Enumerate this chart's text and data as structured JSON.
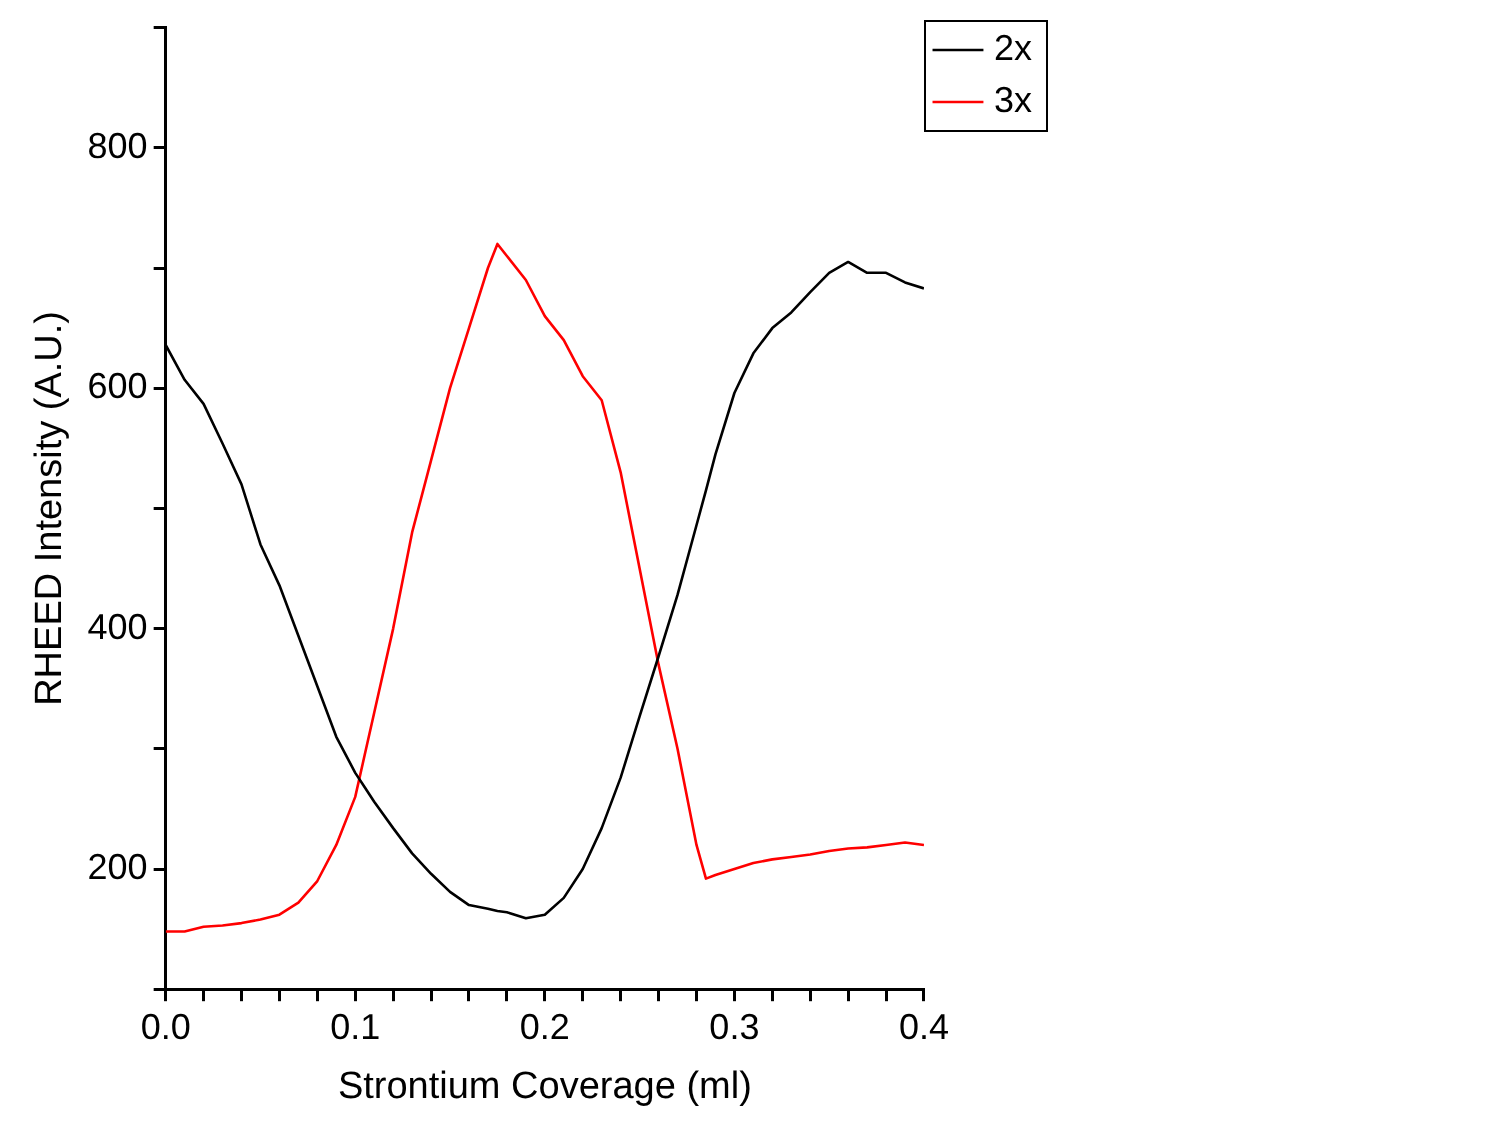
{
  "chart_data": {
    "type": "line",
    "xlabel": "Strontium Coverage (ml)",
    "ylabel": "RHEED Intensity (A.U.)",
    "x": [
      0,
      0.01,
      0.02,
      0.03,
      0.04,
      0.05,
      0.06,
      0.07,
      0.08,
      0.09,
      0.1,
      0.105,
      0.11,
      0.12,
      0.13,
      0.14,
      0.15,
      0.16,
      0.17,
      0.175,
      0.18,
      0.19,
      0.2,
      0.21,
      0.22,
      0.23,
      0.24,
      0.25,
      0.26,
      0.27,
      0.28,
      0.285,
      0.29,
      0.3,
      0.31,
      0.32,
      0.33,
      0.34,
      0.35,
      0.36,
      0.37,
      0.38,
      0.39,
      0.4
    ],
    "series": [
      {
        "name": "2x",
        "color": "#000000",
        "values": [
          636,
          607,
          587,
          554,
          520,
          470,
          436,
          394,
          352,
          310,
          280,
          268,
          256,
          234,
          213,
          196,
          181,
          170,
          167,
          165,
          164,
          159,
          162,
          176,
          200,
          234,
          276,
          327,
          377,
          428,
          486,
          515,
          545,
          596,
          629,
          650,
          663,
          680,
          696,
          705,
          696,
          696,
          688,
          683
        ]
      },
      {
        "name": "3x",
        "color": "#ff0000",
        "values": [
          148,
          148,
          152,
          153,
          155,
          158,
          162,
          172,
          190,
          220,
          260,
          295,
          330,
          400,
          480,
          540,
          600,
          650,
          700,
          720,
          710,
          690,
          660,
          640,
          610,
          590,
          530,
          450,
          370,
          300,
          220,
          192,
          195,
          200,
          205,
          208,
          210,
          212,
          215,
          217,
          218,
          220,
          222,
          220
        ]
      }
    ],
    "xlim": [
      0,
      0.4
    ],
    "ylim": [
      100,
      900
    ],
    "xticks": [
      {
        "value": 0,
        "label": "0.0"
      },
      {
        "value": 0.02,
        "label": null
      },
      {
        "value": 0.04,
        "label": null
      },
      {
        "value": 0.06,
        "label": null
      },
      {
        "value": 0.08,
        "label": null
      },
      0.1,
      {
        "value": 0.12,
        "label": null
      },
      {
        "value": 0.14,
        "label": null
      },
      {
        "value": 0.16,
        "label": null
      },
      {
        "value": 0.18,
        "label": null
      },
      0.2,
      {
        "value": 0.22,
        "label": null
      },
      {
        "value": 0.24,
        "label": null
      },
      {
        "value": 0.26,
        "label": null
      },
      {
        "value": 0.28,
        "label": null
      },
      0.3,
      {
        "value": 0.32,
        "label": null
      },
      {
        "value": 0.34,
        "label": null
      },
      {
        "value": 0.36,
        "label": null
      },
      {
        "value": 0.38,
        "label": null
      },
      0.4
    ],
    "yticks": [
      {
        "value": 100,
        "label": null
      },
      200,
      {
        "value": 300,
        "label": null
      },
      400,
      {
        "value": 500,
        "label": null
      },
      600,
      {
        "value": 700,
        "label": null
      },
      800,
      {
        "value": 900,
        "label": null
      }
    ],
    "grid": false,
    "legend": "top right",
    "marker": "none",
    "line_style": "solid"
  }
}
